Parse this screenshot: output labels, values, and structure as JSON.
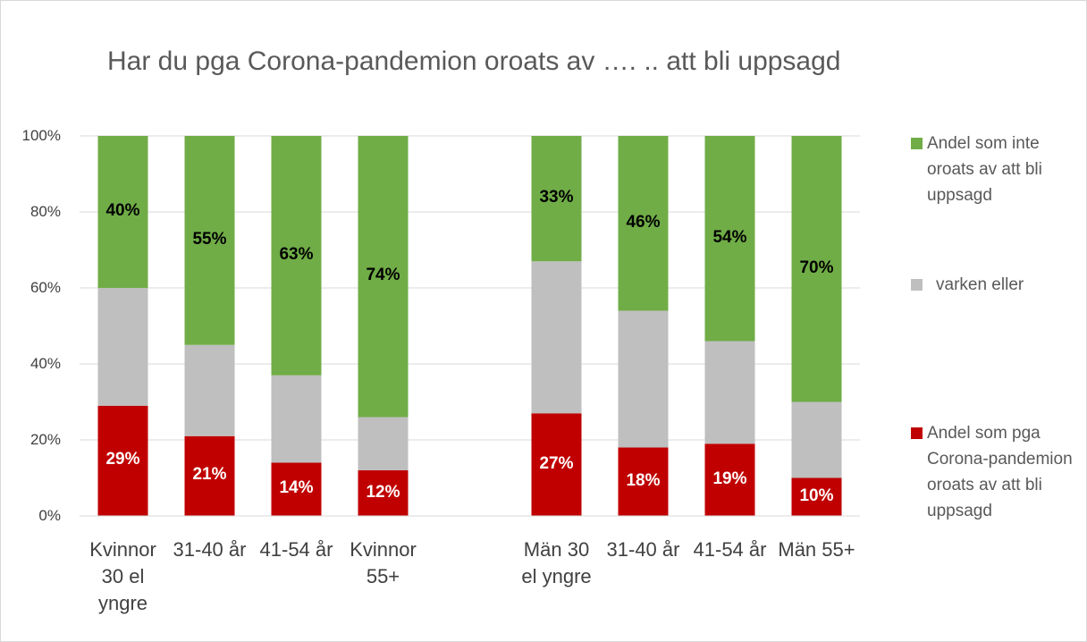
{
  "chart_data": {
    "type": "stacked_bar",
    "title": "Har du pga Corona-pandemion oroats av …. .. att bli uppsagd",
    "categories": [
      "Kvinnor 30 el yngre",
      "31-40 år",
      "41-54 år",
      "Kvinnor 55+",
      null,
      "Män 30 el yngre",
      "31-40 år",
      "41-54 år",
      "Män 55+"
    ],
    "series": [
      {
        "name": "Andel som pga Corona-pandemion oroats av att bli uppsagd",
        "color": "#c00000",
        "values": [
          29,
          21,
          14,
          12,
          null,
          27,
          18,
          19,
          10
        ],
        "value_labels": [
          "29%",
          "21%",
          "14%",
          "12%",
          null,
          "27%",
          "18%",
          "19%",
          "10%"
        ]
      },
      {
        "name": "varken eller",
        "color": "#bfbfbf",
        "values": [
          31,
          24,
          23,
          14,
          null,
          40,
          36,
          27,
          20
        ]
      },
      {
        "name": "Andel som inte oroats av att bli uppsagd",
        "color": "#70ad47",
        "values": [
          40,
          55,
          63,
          74,
          null,
          33,
          46,
          54,
          70
        ],
        "value_labels": [
          "40%",
          "55%",
          "63%",
          "74%",
          null,
          "33%",
          "46%",
          "54%",
          "70%"
        ]
      }
    ],
    "ylim": [
      0,
      100
    ],
    "yticks": [
      {
        "value": 0,
        "label": "0%"
      },
      {
        "value": 20,
        "label": "20%"
      },
      {
        "value": 40,
        "label": "40%"
      },
      {
        "value": 60,
        "label": "60%"
      },
      {
        "value": 80,
        "label": "80%"
      },
      {
        "value": 100,
        "label": "100%"
      }
    ],
    "grid": true,
    "legend": "right"
  }
}
